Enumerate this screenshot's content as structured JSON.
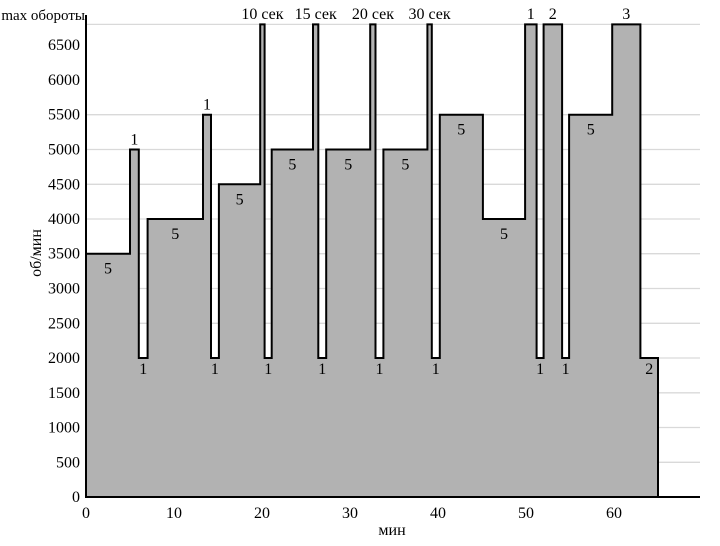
{
  "chart_data": {
    "type": "area",
    "subtype": "step-profile",
    "title": "",
    "xlabel": "мин",
    "ylabel": "об/мин",
    "max_line_label": "max обороты",
    "xlim": [
      0,
      70
    ],
    "ylim": [
      0,
      6800
    ],
    "max_rpm": 6800,
    "x_ticks": [
      0,
      10,
      20,
      30,
      40,
      50,
      60
    ],
    "y_ticks": [
      0,
      500,
      1000,
      1500,
      2000,
      2500,
      3000,
      3500,
      4000,
      4500,
      5000,
      5500,
      6000,
      6500
    ],
    "gridline_values": [
      500,
      1000,
      1500,
      2000,
      2500,
      3000,
      3500,
      4000,
      4500,
      5000,
      5500,
      6800
    ],
    "segments": [
      {
        "t0": 0.0,
        "t1": 5.0,
        "rpm": 3500,
        "label": "5",
        "pos": "inside"
      },
      {
        "t0": 5.0,
        "t1": 6.0,
        "rpm": 5000,
        "label": "1",
        "pos": "above"
      },
      {
        "t0": 6.0,
        "t1": 7.0,
        "rpm": 2000,
        "label": "1",
        "pos": "below"
      },
      {
        "t0": 7.0,
        "t1": 13.3,
        "rpm": 4000,
        "label": "5",
        "pos": "inside"
      },
      {
        "t0": 13.3,
        "t1": 14.2,
        "rpm": 5500,
        "label": "1",
        "pos": "above"
      },
      {
        "t0": 14.2,
        "t1": 15.1,
        "rpm": 2000,
        "label": "1",
        "pos": "below"
      },
      {
        "t0": 15.1,
        "t1": 19.8,
        "rpm": 4500,
        "label": "5",
        "pos": "inside"
      },
      {
        "t0": 19.8,
        "t1": 20.3,
        "rpm": 6800,
        "label": "10 сек",
        "pos": "top"
      },
      {
        "t0": 20.3,
        "t1": 21.1,
        "rpm": 2000,
        "label": "1",
        "pos": "below"
      },
      {
        "t0": 21.1,
        "t1": 25.8,
        "rpm": 5000,
        "label": "5",
        "pos": "inside"
      },
      {
        "t0": 25.8,
        "t1": 26.4,
        "rpm": 6800,
        "label": "15 сек",
        "pos": "top"
      },
      {
        "t0": 26.4,
        "t1": 27.3,
        "rpm": 2000,
        "label": "1",
        "pos": "below"
      },
      {
        "t0": 27.3,
        "t1": 32.3,
        "rpm": 5000,
        "label": "5",
        "pos": "inside"
      },
      {
        "t0": 32.3,
        "t1": 32.9,
        "rpm": 6800,
        "label": "20 сек",
        "pos": "top"
      },
      {
        "t0": 32.9,
        "t1": 33.8,
        "rpm": 2000,
        "label": "1",
        "pos": "below"
      },
      {
        "t0": 33.8,
        "t1": 38.8,
        "rpm": 5000,
        "label": "5",
        "pos": "inside"
      },
      {
        "t0": 38.8,
        "t1": 39.3,
        "rpm": 6800,
        "label": "30 сек",
        "pos": "top"
      },
      {
        "t0": 39.3,
        "t1": 40.2,
        "rpm": 2000,
        "label": "1",
        "pos": "below"
      },
      {
        "t0": 40.2,
        "t1": 45.1,
        "rpm": 5500,
        "label": "5",
        "pos": "inside"
      },
      {
        "t0": 45.1,
        "t1": 49.9,
        "rpm": 4000,
        "label": "5",
        "pos": "inside"
      },
      {
        "t0": 49.9,
        "t1": 51.2,
        "rpm": 6800,
        "label": "1",
        "pos": "top"
      },
      {
        "t0": 51.2,
        "t1": 52.0,
        "rpm": 2000,
        "label": "1",
        "pos": "below"
      },
      {
        "t0": 52.0,
        "t1": 54.1,
        "rpm": 6800,
        "label": "2",
        "pos": "top"
      },
      {
        "t0": 54.1,
        "t1": 54.9,
        "rpm": 2000,
        "label": "1",
        "pos": "below"
      },
      {
        "t0": 54.9,
        "t1": 59.8,
        "rpm": 5500,
        "label": "5",
        "pos": "inside"
      },
      {
        "t0": 59.8,
        "t1": 63.0,
        "rpm": 6800,
        "label": "3",
        "pos": "top"
      },
      {
        "t0": 63.0,
        "t1": 65.0,
        "rpm": 2000,
        "label": "2",
        "pos": "below"
      }
    ]
  },
  "colors": {
    "fill": "#b2b2b2",
    "stroke": "#000000",
    "gridline": "#d9d9d9",
    "background": "#ffffff",
    "text": "#000000"
  }
}
